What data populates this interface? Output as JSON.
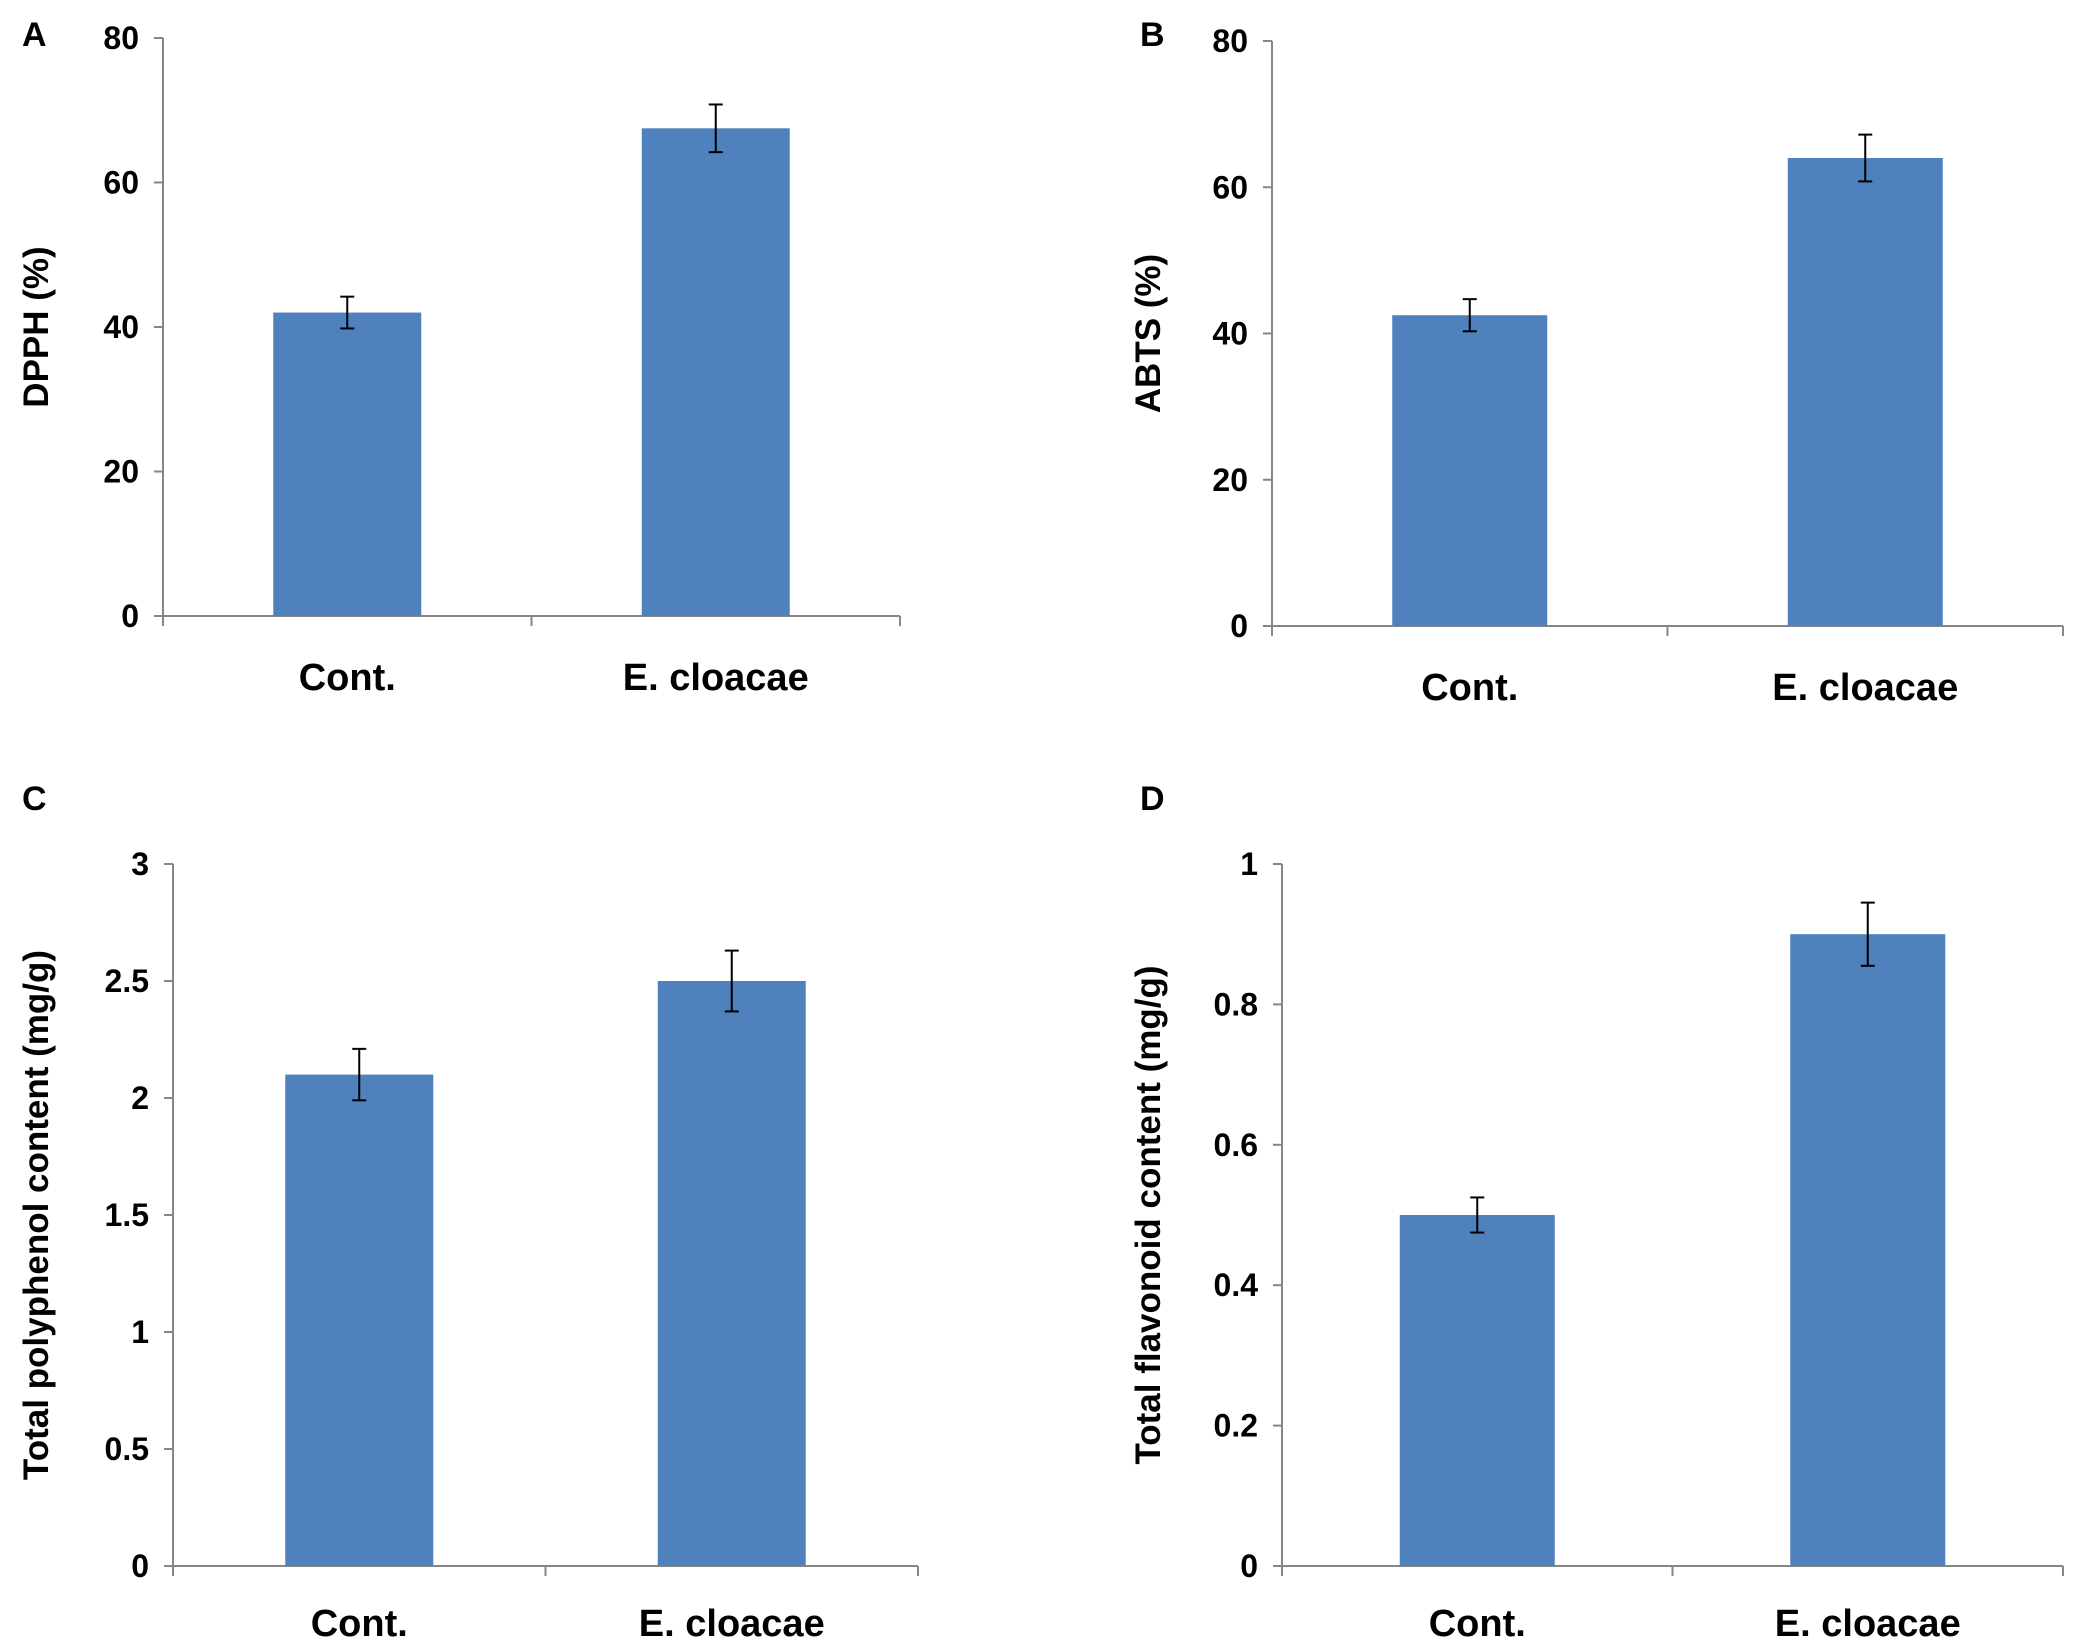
{
  "colors": {
    "bar": "#4f81bd",
    "axis": "#868686",
    "errorbar": "#000000",
    "text": "#000000"
  },
  "chart_data": [
    {
      "panel": "A",
      "type": "bar",
      "categories": [
        "Cont.",
        "E. cloacae"
      ],
      "values": [
        42,
        67.5
      ],
      "errors": [
        2.2,
        3.3
      ],
      "ylabel": "DPPH (%)",
      "xlabel": "",
      "ylim": [
        0,
        80
      ],
      "yticks": [
        0,
        20,
        40,
        60,
        80
      ],
      "ytick_labels": [
        "0",
        "20",
        "40",
        "60",
        "80"
      ]
    },
    {
      "panel": "B",
      "type": "bar",
      "categories": [
        "Cont.",
        "E. cloacae"
      ],
      "values": [
        42.5,
        64
      ],
      "errors": [
        2.2,
        3.2
      ],
      "ylabel": "ABTS (%)",
      "xlabel": "",
      "ylim": [
        0,
        80
      ],
      "yticks": [
        0,
        20,
        40,
        60,
        80
      ],
      "ytick_labels": [
        "0",
        "20",
        "40",
        "60",
        "80"
      ]
    },
    {
      "panel": "C",
      "type": "bar",
      "categories": [
        "Cont.",
        "E. cloacae"
      ],
      "values": [
        2.1,
        2.5
      ],
      "errors": [
        0.11,
        0.13
      ],
      "ylabel": "Total polyphenol content (mg/g)",
      "xlabel": "",
      "ylim": [
        0,
        3
      ],
      "yticks": [
        0,
        0.5,
        1,
        1.5,
        2,
        2.5,
        3
      ],
      "ytick_labels": [
        "0",
        "0.5",
        "1",
        "1.5",
        "2",
        "2.5",
        "3"
      ]
    },
    {
      "panel": "D",
      "type": "bar",
      "categories": [
        "Cont.",
        "E. cloacae"
      ],
      "values": [
        0.5,
        0.9
      ],
      "errors": [
        0.025,
        0.045
      ],
      "ylabel": "Total flavonoid content (mg/g)",
      "xlabel": "",
      "ylim": [
        0,
        1
      ],
      "yticks": [
        0,
        0.2,
        0.4,
        0.6,
        0.8,
        1
      ],
      "ytick_labels": [
        "0",
        "0.2",
        "0.4",
        "0.6",
        "0.8",
        "1"
      ]
    }
  ]
}
